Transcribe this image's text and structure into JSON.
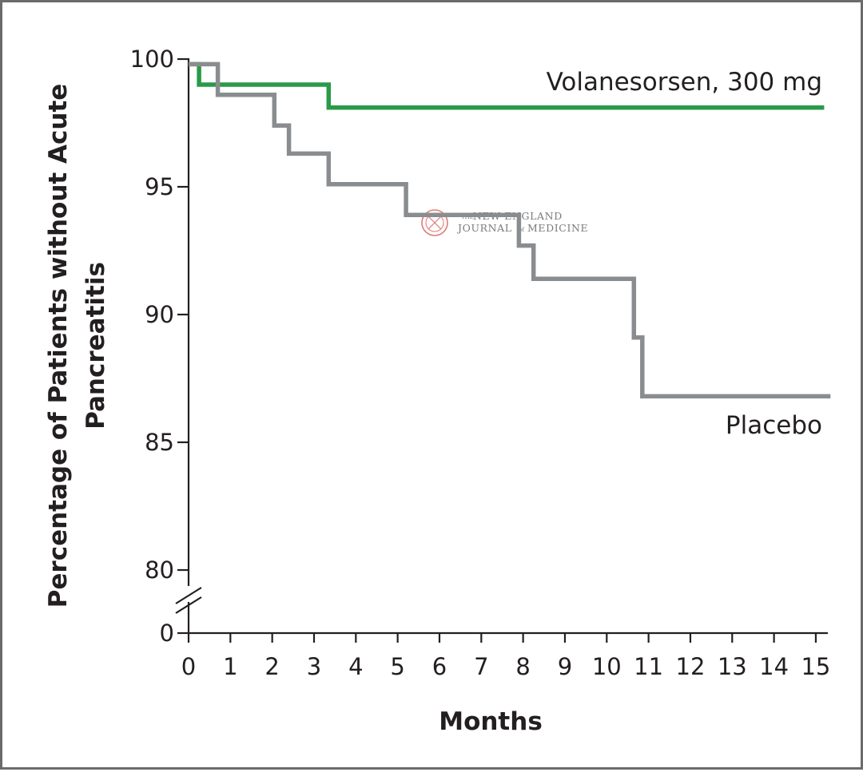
{
  "chart_data": {
    "type": "line",
    "step": true,
    "xlabel": "Months",
    "ylabel_lines": [
      "Percentage of Patients without Acute",
      "Pancreatitis"
    ],
    "xlim": [
      0,
      15
    ],
    "y_ticks": [
      0,
      80,
      85,
      90,
      95,
      100
    ],
    "y_axis_break": true,
    "x_ticks": [
      0,
      1,
      2,
      3,
      4,
      5,
      6,
      7,
      8,
      9,
      10,
      11,
      12,
      13,
      14,
      15
    ],
    "x_tick_labels": [
      "0",
      "1",
      "2",
      "3",
      "4",
      "5",
      "6",
      "7",
      "8",
      "9",
      "10",
      "11",
      "12",
      "13",
      "14",
      "15"
    ],
    "y_tick_labels": [
      "0",
      "80",
      "85",
      "90",
      "95",
      "100"
    ],
    "series": [
      {
        "name": "Volanesorsen, 300 mg",
        "color": "#2a9a48",
        "points": [
          [
            0,
            99.8
          ],
          [
            0.25,
            99.8
          ],
          [
            0.25,
            99.0
          ],
          [
            3.35,
            99.0
          ],
          [
            3.35,
            98.1
          ],
          [
            15.2,
            98.1
          ]
        ]
      },
      {
        "name": "Placebo",
        "color": "#8a8d8f",
        "points": [
          [
            0,
            99.8
          ],
          [
            0.7,
            99.8
          ],
          [
            0.7,
            98.6
          ],
          [
            2.05,
            98.6
          ],
          [
            2.05,
            97.4
          ],
          [
            2.4,
            97.4
          ],
          [
            2.4,
            96.3
          ],
          [
            3.35,
            96.3
          ],
          [
            3.35,
            95.1
          ],
          [
            5.2,
            95.1
          ],
          [
            5.2,
            93.9
          ],
          [
            7.9,
            93.9
          ],
          [
            7.9,
            92.7
          ],
          [
            8.25,
            92.7
          ],
          [
            8.25,
            91.4
          ],
          [
            10.65,
            91.4
          ],
          [
            10.65,
            89.1
          ],
          [
            10.85,
            89.1
          ],
          [
            10.85,
            86.8
          ],
          [
            15.35,
            86.8
          ]
        ]
      }
    ]
  },
  "watermark": {
    "prefix": "THE",
    "line1": "NEW ENGLAND",
    "line2a": "JOURNAL",
    "line2b": "of",
    "line2c": "MEDICINE",
    "seal_color": "#d9534f"
  }
}
